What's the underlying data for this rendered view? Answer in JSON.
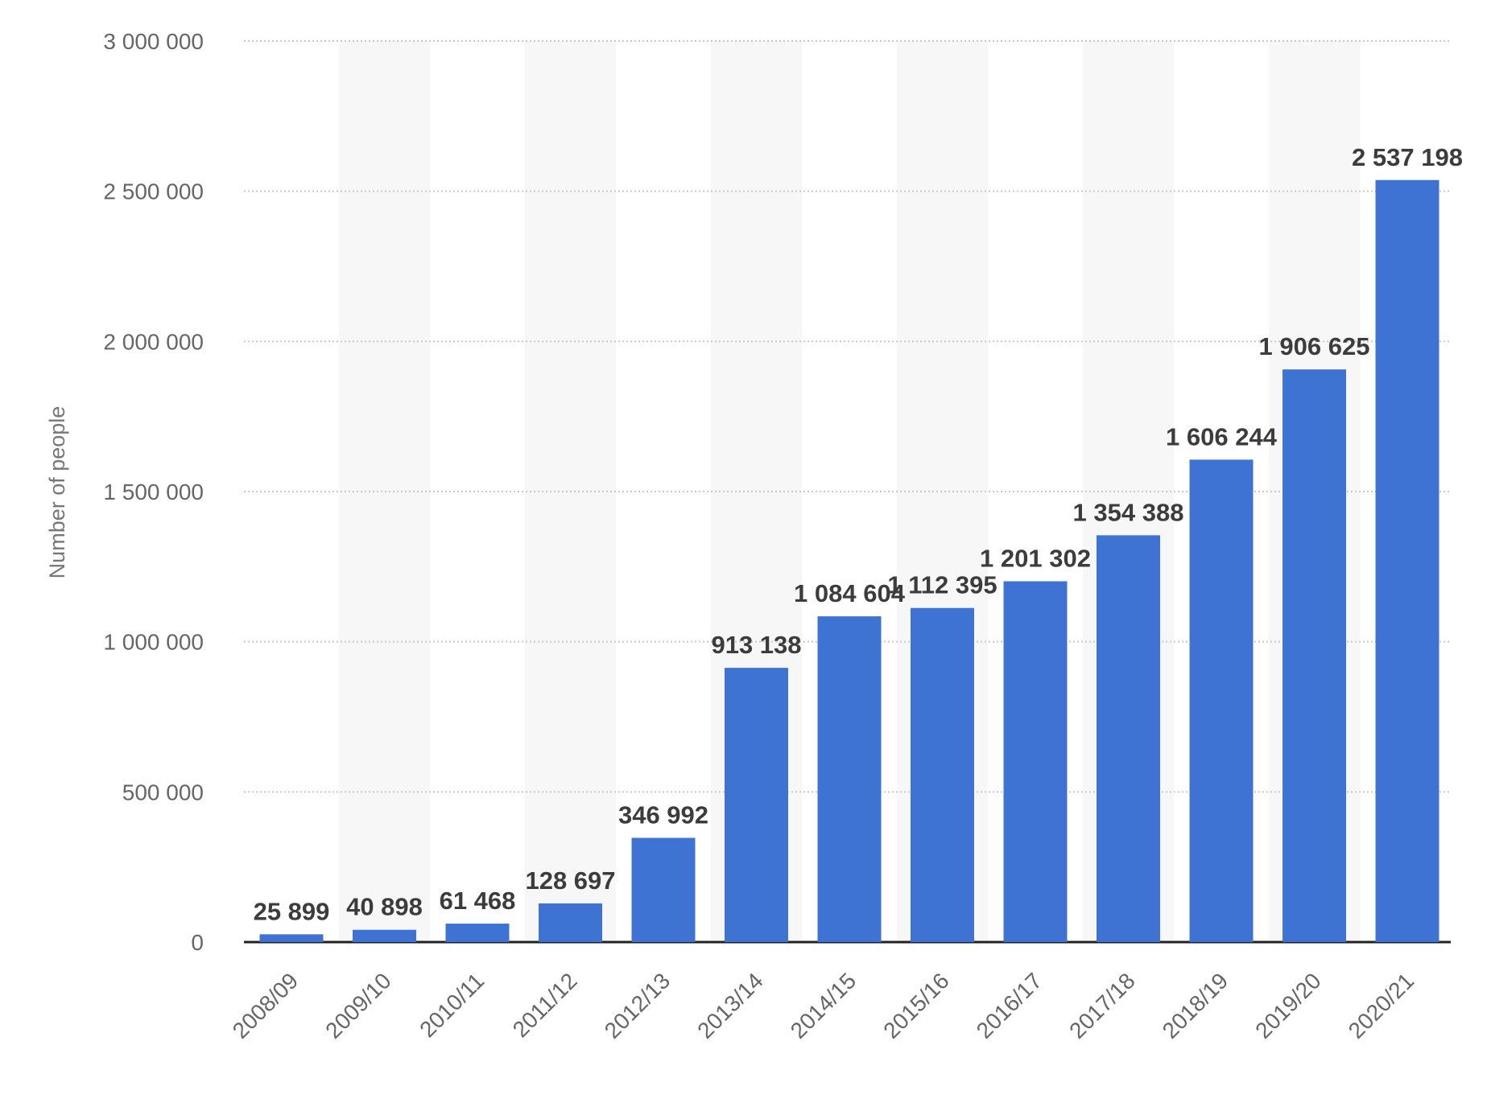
{
  "chart_data": {
    "type": "bar",
    "title": "",
    "xlabel": "",
    "ylabel": "Number of people",
    "ylim": [
      0,
      3000000
    ],
    "yticks": [
      0,
      500000,
      1000000,
      1500000,
      2000000,
      2500000,
      3000000
    ],
    "ytick_labels": [
      "0",
      "500 000",
      "1 000 000",
      "1 500 000",
      "2 000 000",
      "2 500 000",
      "3 000 000"
    ],
    "categories": [
      "2008/09",
      "2009/10",
      "2010/11",
      "2011/12",
      "2012/13",
      "2013/14",
      "2014/15",
      "2015/16",
      "2016/17",
      "2017/18",
      "2018/19",
      "2019/20",
      "2020/21"
    ],
    "values": [
      25899,
      40898,
      61468,
      128697,
      346992,
      913138,
      1084604,
      1112395,
      1201302,
      1354388,
      1606244,
      1906625,
      2537198
    ],
    "value_labels": [
      "25 899",
      "40 898",
      "61 468",
      "128 697",
      "346 992",
      "913 138",
      "1 084 604",
      "1 112 395",
      "1 201 302",
      "1 354 388",
      "1 606 244",
      "1 906 625",
      "2 537 198"
    ],
    "grid": true,
    "legend": "none",
    "bar_color": "#3f73d3"
  }
}
